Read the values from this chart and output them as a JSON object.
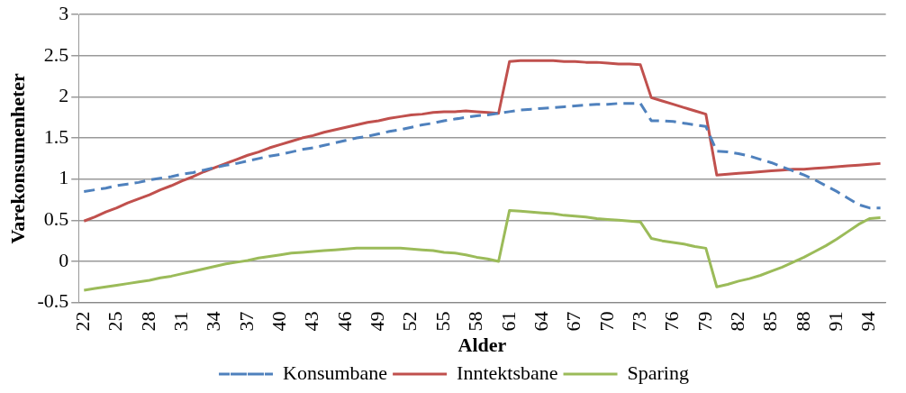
{
  "chart_data": {
    "type": "line",
    "xlabel": "Alder",
    "ylabel": "Varekonsumenheter",
    "categories": [
      "22",
      null,
      null,
      "25",
      null,
      null,
      "28",
      null,
      null,
      "31",
      null,
      null,
      "34",
      null,
      null,
      "37",
      null,
      null,
      "40",
      null,
      null,
      "43",
      null,
      null,
      "46",
      null,
      null,
      "49",
      null,
      null,
      "52",
      null,
      null,
      "55",
      null,
      null,
      "58",
      null,
      null,
      "61",
      null,
      null,
      "64",
      null,
      null,
      "67",
      null,
      null,
      "70",
      null,
      null,
      "73",
      null,
      null,
      "76",
      null,
      null,
      "79",
      null,
      null,
      "82",
      null,
      null,
      "85",
      null,
      null,
      "88",
      null,
      null,
      "91",
      null,
      null,
      "94",
      null
    ],
    "ylim": [
      -0.5,
      3
    ],
    "yticks": [
      -0.5,
      0,
      0.5,
      1,
      1.5,
      2,
      2.5,
      3
    ],
    "grid": "y",
    "legend": "bottom",
    "marker": "none",
    "series": [
      {
        "name": "Konsumbane",
        "color": "#4f81bd",
        "line_style": "dashed",
        "values": [
          0.85,
          0.87,
          0.89,
          0.92,
          0.94,
          0.96,
          0.99,
          1.01,
          1.03,
          1.06,
          1.08,
          1.11,
          1.14,
          1.17,
          1.19,
          1.22,
          1.25,
          1.28,
          1.3,
          1.33,
          1.36,
          1.38,
          1.41,
          1.44,
          1.47,
          1.5,
          1.52,
          1.55,
          1.58,
          1.6,
          1.63,
          1.66,
          1.68,
          1.71,
          1.73,
          1.75,
          1.77,
          1.78,
          1.8,
          1.82,
          1.84,
          1.85,
          1.86,
          1.87,
          1.88,
          1.89,
          1.9,
          1.91,
          1.91,
          1.92,
          1.92,
          1.92,
          1.71,
          1.71,
          1.7,
          1.68,
          1.66,
          1.64,
          1.34,
          1.33,
          1.31,
          1.28,
          1.24,
          1.2,
          1.15,
          1.1,
          1.05,
          0.99,
          0.92,
          0.85,
          0.77,
          0.69,
          0.65,
          0.65
        ]
      },
      {
        "name": "Inntektsbane",
        "color": "#c0504d",
        "line_style": "solid",
        "values": [
          0.49,
          0.54,
          0.6,
          0.65,
          0.71,
          0.76,
          0.81,
          0.87,
          0.92,
          0.98,
          1.03,
          1.09,
          1.14,
          1.19,
          1.24,
          1.29,
          1.33,
          1.38,
          1.42,
          1.46,
          1.5,
          1.53,
          1.57,
          1.6,
          1.63,
          1.66,
          1.69,
          1.71,
          1.74,
          1.76,
          1.78,
          1.79,
          1.81,
          1.82,
          1.82,
          1.83,
          1.82,
          1.81,
          1.8,
          2.43,
          2.44,
          2.44,
          2.44,
          2.44,
          2.43,
          2.43,
          2.42,
          2.42,
          2.41,
          2.4,
          2.4,
          2.39,
          1.99,
          1.95,
          1.91,
          1.87,
          1.83,
          1.79,
          1.05,
          1.06,
          1.07,
          1.08,
          1.09,
          1.1,
          1.11,
          1.12,
          1.12,
          1.13,
          1.14,
          1.15,
          1.16,
          1.17,
          1.18,
          1.19
        ]
      },
      {
        "name": "Sparing",
        "color": "#9bbb59",
        "line_style": "solid",
        "values": [
          -0.35,
          -0.33,
          -0.31,
          -0.29,
          -0.27,
          -0.25,
          -0.23,
          -0.2,
          -0.18,
          -0.15,
          -0.12,
          -0.09,
          -0.06,
          -0.03,
          -0.01,
          0.01,
          0.04,
          0.06,
          0.08,
          0.1,
          0.11,
          0.12,
          0.13,
          0.14,
          0.15,
          0.16,
          0.16,
          0.16,
          0.16,
          0.16,
          0.15,
          0.14,
          0.13,
          0.11,
          0.1,
          0.08,
          0.05,
          0.03,
          0,
          0.62,
          0.61,
          0.6,
          0.59,
          0.58,
          0.56,
          0.55,
          0.54,
          0.52,
          0.51,
          0.5,
          0.49,
          0.48,
          0.28,
          0.25,
          0.23,
          0.21,
          0.18,
          0.16,
          -0.31,
          -0.28,
          -0.24,
          -0.21,
          -0.17,
          -0.12,
          -0.07,
          -0.01,
          0.05,
          0.12,
          0.19,
          0.27,
          0.36,
          0.45,
          0.52,
          0.53
        ]
      }
    ]
  }
}
